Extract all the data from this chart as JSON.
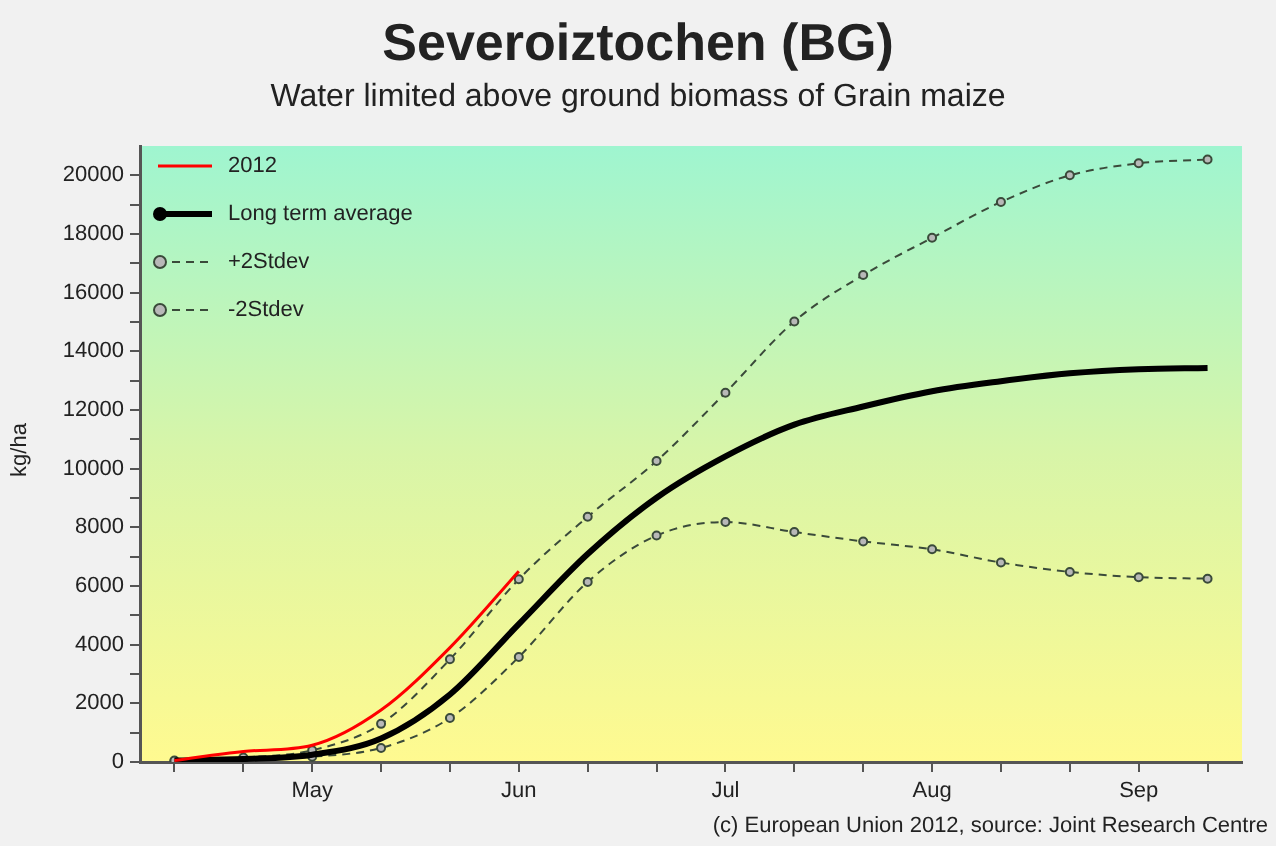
{
  "chart_data": {
    "type": "line",
    "title": "Severoiztochen (BG)",
    "subtitle": "Water limited above ground biomass of Grain maize",
    "ylabel": "kg/ha",
    "annotations": [
      "(c) European Union 2012, source: Joint Research Centre"
    ],
    "categories": [
      null,
      null,
      "May",
      null,
      null,
      "Jun",
      null,
      null,
      "Jul",
      null,
      null,
      "Aug",
      null,
      null,
      "Sep",
      null
    ],
    "ylim": [
      0,
      21000
    ],
    "yticks": [
      0,
      {
        "value": 1000,
        "label": null
      },
      2000,
      {
        "value": 3000,
        "label": null
      },
      4000,
      {
        "value": 5000,
        "label": null
      },
      6000,
      {
        "value": 7000,
        "label": null
      },
      8000,
      {
        "value": 9000,
        "label": null
      },
      10000,
      {
        "value": 11000,
        "label": null
      },
      12000,
      {
        "value": 13000,
        "label": null
      },
      14000,
      {
        "value": 15000,
        "label": null
      },
      16000,
      {
        "value": 17000,
        "label": null
      },
      18000,
      {
        "value": 19000,
        "label": null
      },
      20000
    ],
    "legend": "top left",
    "series": [
      {
        "name": "2012",
        "color": "#ff0000",
        "marker": "none",
        "line_style": "solid",
        "values": [
          50,
          360,
          570,
          1770,
          3900,
          6500,
          null,
          null,
          null,
          null,
          null,
          null,
          null,
          null,
          null,
          null
        ]
      },
      {
        "name": "Long term average",
        "color": "#000000",
        "marker": "none",
        "line_style": "solid",
        "values": [
          50,
          100,
          250,
          800,
          2300,
          4700,
          7090,
          9010,
          10420,
          11500,
          12120,
          12640,
          12980,
          13250,
          13390,
          13430
        ]
      },
      {
        "name": "+2Stdev",
        "color": "#3a4a3a",
        "marker": "circle",
        "line_style": "dashed",
        "values": [
          50,
          150,
          400,
          1300,
          3500,
          6230,
          8360,
          10260,
          12590,
          15020,
          16600,
          17870,
          19090,
          20000,
          20410,
          20540
        ]
      },
      {
        "name": "-2Stdev",
        "color": "#3a4a3a",
        "marker": "circle",
        "line_style": "dashed",
        "values": [
          30,
          80,
          180,
          480,
          1500,
          3580,
          6140,
          7720,
          8180,
          7840,
          7520,
          7250,
          6800,
          6480,
          6300,
          6250
        ]
      }
    ]
  }
}
